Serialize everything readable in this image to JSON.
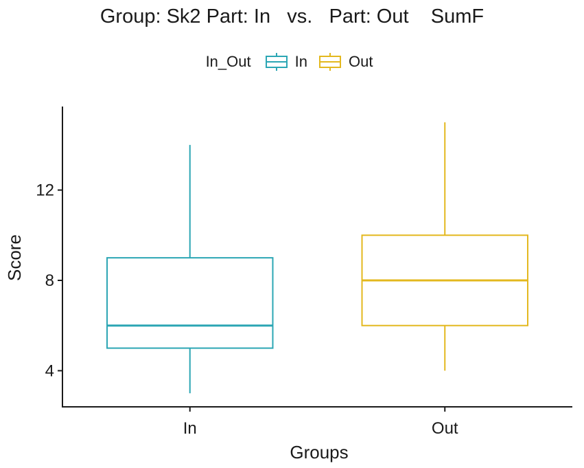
{
  "chart_data": {
    "type": "box",
    "title": "Group: Sk2 Part: In   vs.   Part: Out    SumF",
    "xlabel": "Groups",
    "ylabel": "Score",
    "legend": {
      "title": "In_Out",
      "placement": "top",
      "entries": [
        "In",
        "Out"
      ]
    },
    "categories": [
      "In",
      "Out"
    ],
    "yticks": [
      4,
      8,
      12
    ],
    "ylim": [
      2.4,
      15.7
    ],
    "grid": false,
    "series": [
      {
        "name": "In",
        "color": "#2ba6b4",
        "whisker_low": 3,
        "q1": 5,
        "median": 6,
        "q3": 9,
        "whisker_high": 14
      },
      {
        "name": "Out",
        "color": "#e3b81e",
        "whisker_low": 4,
        "q1": 6,
        "median": 8,
        "q3": 10,
        "whisker_high": 15
      }
    ]
  }
}
